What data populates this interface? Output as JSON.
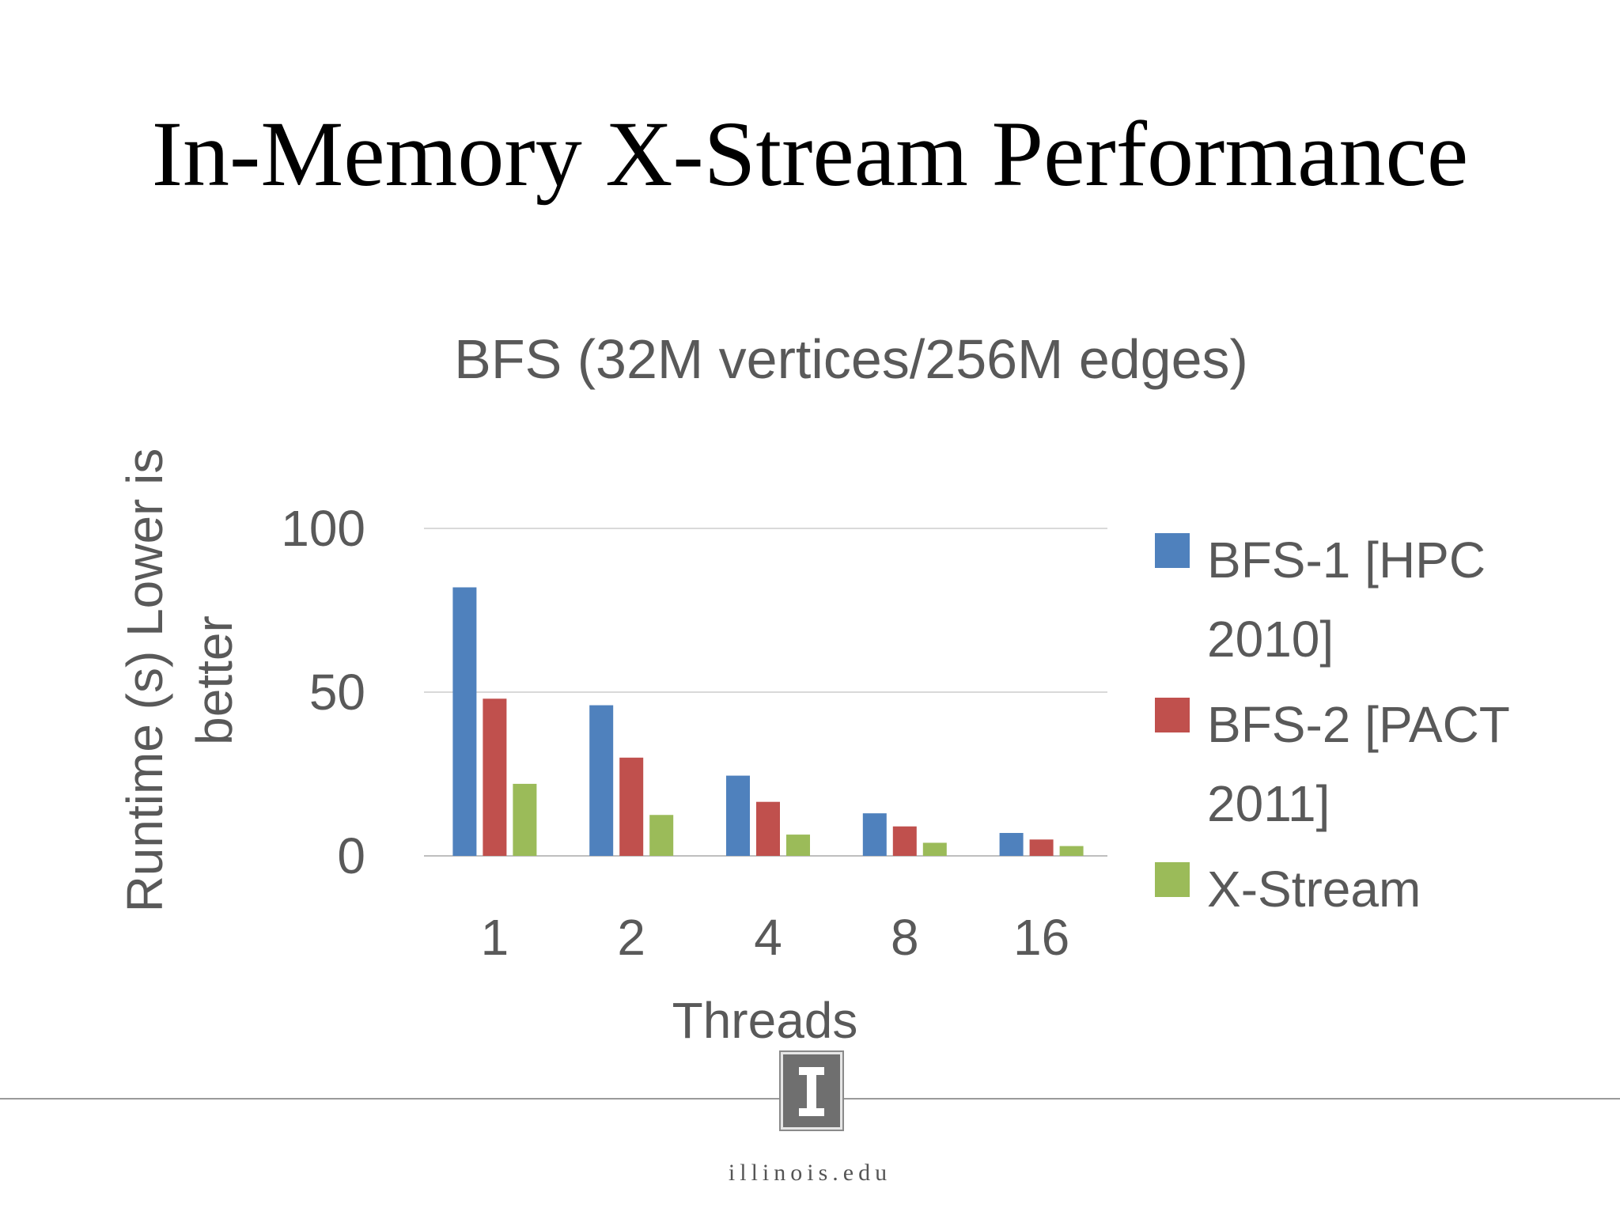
{
  "slide": {
    "title": "In-Memory X-Stream Performance",
    "footer_site": "illinois.edu"
  },
  "chart_data": {
    "type": "bar",
    "title": "BFS (32M vertices/256M edges)",
    "xlabel": "Threads",
    "ylabel_lines": [
      "Runtime (s) Lower is",
      "better"
    ],
    "categories": [
      "1",
      "2",
      "4",
      "8",
      "16"
    ],
    "ylim": [
      0,
      100
    ],
    "yticks": [
      0,
      50,
      100
    ],
    "grid": true,
    "legend_position": "right",
    "series": [
      {
        "name": "BFS-1 [HPC 2010]",
        "name_lines": [
          "BFS-1 [HPC",
          "2010]"
        ],
        "color": "#4f81bd",
        "values": [
          82,
          46,
          24.5,
          13,
          7
        ]
      },
      {
        "name": "BFS-2 [PACT 2011]",
        "name_lines": [
          "BFS-2 [PACT",
          "2011]"
        ],
        "color": "#c0504d",
        "values": [
          48,
          30,
          16.5,
          9,
          5
        ]
      },
      {
        "name": "X-Stream",
        "name_lines": [
          "X-Stream"
        ],
        "color": "#9bbb59",
        "values": [
          22,
          12.5,
          6.5,
          4,
          3
        ]
      }
    ]
  }
}
